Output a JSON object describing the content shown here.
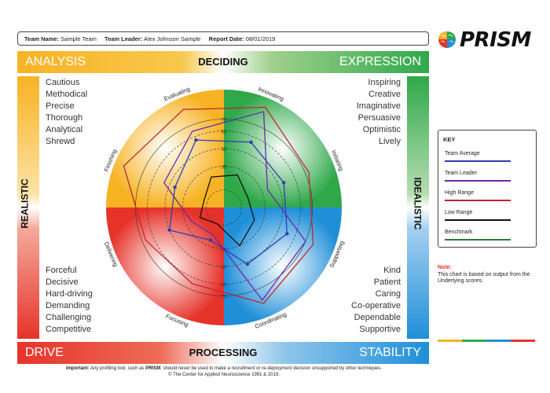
{
  "header": {
    "team_name_label": "Team Name:",
    "team_name": "Sample Team",
    "team_leader_label": "Team Leader:",
    "team_leader": "Alex Johnson Sample",
    "report_date_label": "Report Date:",
    "report_date": "08/01/2019"
  },
  "logo": {
    "text": "PRISM",
    "icon": "brain-icon"
  },
  "bars": {
    "top_left": "ANALYSIS",
    "top_center": "DECIDING",
    "top_right": "EXPRESSION",
    "bottom_left": "DRIVE",
    "bottom_center": "PROCESSING",
    "bottom_right": "STABILITY",
    "left": "REALISTIC",
    "right": "IDEALISTIC"
  },
  "words": {
    "top_left": [
      "Cautious",
      "Methodical",
      "Precise",
      "Thorough",
      "Analytical",
      "Shrewd"
    ],
    "top_right": [
      "Inspiring",
      "Creative",
      "Imaginative",
      "Persuasive",
      "Optimistic",
      "Lively"
    ],
    "bottom_left": [
      "Forceful",
      "Decisive",
      "Hard-driving",
      "Demanding",
      "Challenging",
      "Competitive"
    ],
    "bottom_right": [
      "Kind",
      "Patient",
      "Caring",
      "Co-operative",
      "Dependable",
      "Supportive"
    ]
  },
  "key": {
    "title": "KEY",
    "items": [
      {
        "label": "Team Average",
        "color": "#2b3fb0"
      },
      {
        "label": "Team Leader",
        "color": "#6a2aa8"
      },
      {
        "label": "High Range",
        "color": "#c0272d"
      },
      {
        "label": "Low Range",
        "color": "#111111"
      },
      {
        "label": "Benchmark",
        "color": "#2a7a32"
      }
    ]
  },
  "note": {
    "title": "Note:",
    "text": "This chart is based on output from the Underlying scores."
  },
  "footer": {
    "important_label": "Important:",
    "important_text_a": "Any profiling tool, such as",
    "important_brand": "PRISM",
    "important_text_b": ", should never be used to make a recruitment or re-deployment decision unsupported by other techniques.",
    "copyright": "© The Center for Applied Neuroscience 1991 & 2019."
  },
  "chart_data": {
    "type": "radar",
    "axes": [
      "Innovating",
      "Initiating",
      "Supporting",
      "Coordinating",
      "Focusing",
      "Delivering",
      "Finishing",
      "Evaluating"
    ],
    "ring_labels": [
      "35",
      "50",
      "65",
      "75"
    ],
    "range": [
      0,
      100
    ],
    "quadrant_colors": {
      "top_left": "#f7b324",
      "top_right": "#2fa84a",
      "bottom_left": "#e6332a",
      "bottom_right": "#1f8fd8"
    },
    "series": [
      {
        "name": "Team Average",
        "color": "#2b3fb0",
        "values": [
          60,
          55,
          58,
          52,
          30,
          50,
          45,
          62
        ],
        "markers": true
      },
      {
        "name": "Team Leader",
        "color": "#6a2aa8",
        "values": [
          88,
          40,
          75,
          85,
          25,
          30,
          55,
          70
        ]
      },
      {
        "name": "High Range",
        "color": "#c0272d",
        "values": [
          92,
          78,
          82,
          88,
          70,
          72,
          92,
          90
        ]
      },
      {
        "name": "Low Range",
        "color": "#111111",
        "values": [
          30,
          22,
          28,
          35,
          15,
          22,
          18,
          28
        ]
      },
      {
        "name": "Benchmark",
        "color": "#2a7a32",
        "values": []
      }
    ]
  }
}
